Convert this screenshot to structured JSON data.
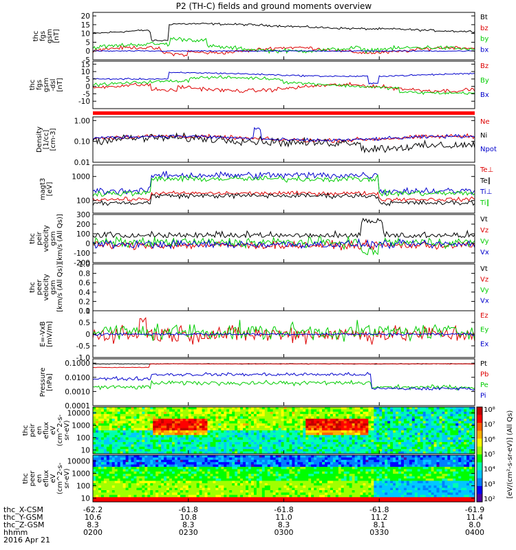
{
  "title": "P2 (TH-C) fields and ground moments overview",
  "footer": {
    "rows": [
      {
        "label": "thc_X-CSM",
        "values": [
          "-62.2",
          "-61.8",
          "-61.8",
          "-61.8",
          "-61.9"
        ]
      },
      {
        "label": "thc_Y-GSM",
        "values": [
          "10.6",
          "10.8",
          "11.0",
          "11.2",
          "11.4"
        ]
      },
      {
        "label": "thc_Z-GSM",
        "values": [
          "8.3",
          "8.3",
          "8.3",
          "8.1",
          "8.0"
        ]
      },
      {
        "label": "hhmm",
        "values": [
          "0200",
          "0230",
          "0300",
          "0330",
          "0400"
        ]
      }
    ],
    "date": "2016 Apr 21"
  },
  "colorbar": {
    "ticks": [
      "10⁸",
      "10⁷",
      "10⁶",
      "10⁵",
      "10⁴",
      "10³",
      "10²"
    ],
    "label": "[eV/(cm²-s-sr-eV)] (All Qs)"
  },
  "chart_data": [
    {
      "type": "line",
      "panel": "fgs-gsm",
      "ylabel": [
        "thc",
        "fgs",
        "gsm",
        "[nT]"
      ],
      "ylim": [
        -5,
        22
      ],
      "yticks": [
        "20",
        "15",
        "10",
        "5",
        "0",
        "-5"
      ],
      "series": [
        {
          "name": "Bt",
          "color": "#000000"
        },
        {
          "name": "bz",
          "color": "#dd0000"
        },
        {
          "name": "by",
          "color": "#00cc00"
        },
        {
          "name": "bx",
          "color": "#0000cc"
        }
      ]
    },
    {
      "type": "line",
      "panel": "fgs-gsm-dsl",
      "ylabel": [
        "thc",
        "fgs",
        "gsm",
        "-dsl",
        "[nT]"
      ],
      "ylim": [
        -15,
        17
      ],
      "yticks": [
        "15",
        "10",
        "5",
        "0",
        "-5",
        "-10"
      ],
      "series": [
        {
          "name": "Bz",
          "color": "#dd0000"
        },
        {
          "name": "By",
          "color": "#00cc00"
        },
        {
          "name": "Bx",
          "color": "#0000cc"
        }
      ]
    },
    {
      "type": "line",
      "panel": "density",
      "ylabel": [
        "Density",
        "[1/cc]",
        "[cm-3]"
      ],
      "yscale": "log",
      "ylim": [
        0.01,
        1.5
      ],
      "yticks": [
        "1.00",
        "0.10",
        "0.01"
      ],
      "series": [
        {
          "name": "Ne",
          "color": "#dd0000"
        },
        {
          "name": "Ni",
          "color": "#000000"
        },
        {
          "name": "Npot",
          "color": "#0000cc"
        }
      ]
    },
    {
      "type": "line",
      "panel": "temperature",
      "ylabel": [
        "magt3",
        "[eV]"
      ],
      "yscale": "log",
      "ylim": [
        30,
        3000
      ],
      "yticks": [
        "1000",
        "100"
      ],
      "series": [
        {
          "name": "Te⊥",
          "color": "#dd0000"
        },
        {
          "name": "Te∥",
          "color": "#000000"
        },
        {
          "name": "Ti⊥",
          "color": "#0000cc"
        },
        {
          "name": "Ti∥",
          "color": "#00cc00"
        }
      ]
    },
    {
      "type": "line",
      "panel": "peir-velocity",
      "ylabel": [
        "thc",
        "peir",
        "velocity",
        "gsm",
        "[km/s (All Qs)]"
      ],
      "ylim": [
        -200,
        300
      ],
      "yticks": [
        "300",
        "200",
        "100",
        "0",
        "-100",
        "-200"
      ],
      "series": [
        {
          "name": "Vt",
          "color": "#000000"
        },
        {
          "name": "Vz",
          "color": "#dd0000"
        },
        {
          "name": "Vy",
          "color": "#00cc00"
        },
        {
          "name": "Vx",
          "color": "#0000cc"
        }
      ]
    },
    {
      "type": "line",
      "panel": "peer-velocity",
      "ylabel": [
        "thc",
        "peer",
        "velocity",
        "gsm",
        "[km/s (All Qs)]"
      ],
      "ylim": [
        0,
        1
      ],
      "yticks": [
        "1.0",
        "0.8",
        "0.6",
        "0.4",
        "0.2",
        "0.0"
      ],
      "series": [
        {
          "name": "Vt",
          "color": "#000000"
        },
        {
          "name": "Vz",
          "color": "#dd0000"
        },
        {
          "name": "Vy",
          "color": "#00cc00"
        },
        {
          "name": "Vx",
          "color": "#0000cc"
        }
      ]
    },
    {
      "type": "line",
      "panel": "efield",
      "ylabel": [
        "E=-VxB",
        "[mV/m]"
      ],
      "ylim": [
        -1,
        1
      ],
      "yticks": [
        "1",
        "0.5",
        "0",
        "-0.5",
        "-1.0"
      ],
      "series": [
        {
          "name": "Ez",
          "color": "#dd0000"
        },
        {
          "name": "Ey",
          "color": "#00cc00"
        },
        {
          "name": "Ex",
          "color": "#0000cc"
        }
      ]
    },
    {
      "type": "line",
      "panel": "pressure",
      "ylabel": [
        "Pressure",
        "[nPa]"
      ],
      "yscale": "log",
      "ylim": [
        0.0001,
        0.2
      ],
      "yticks": [
        "0.1000",
        "0.0100",
        "0.0010",
        "0.0001"
      ],
      "series": [
        {
          "name": "Pt",
          "color": "#000000"
        },
        {
          "name": "Pb",
          "color": "#dd0000"
        },
        {
          "name": "Pe",
          "color": "#00cc00"
        },
        {
          "name": "Pi",
          "color": "#0000cc"
        }
      ]
    },
    {
      "type": "heatmap",
      "panel": "peir-en-eflux",
      "ylabel": [
        "thc",
        "peir",
        "en",
        "eflux",
        "eV",
        "(cm^2-s-",
        "sr-eV)"
      ],
      "yscale": "log",
      "ylim": [
        5,
        30000
      ],
      "yticks": [
        "10000",
        "1000",
        "100",
        "10"
      ]
    },
    {
      "type": "heatmap",
      "panel": "peer-en-eflux",
      "ylabel": [
        "thc",
        "peer",
        "en",
        "eflux",
        "eV",
        "(cm^2-s-",
        "sr-eV)"
      ],
      "yscale": "log",
      "ylim": [
        5,
        30000
      ],
      "yticks": [
        "10000",
        "1000",
        "100",
        "10"
      ]
    }
  ]
}
